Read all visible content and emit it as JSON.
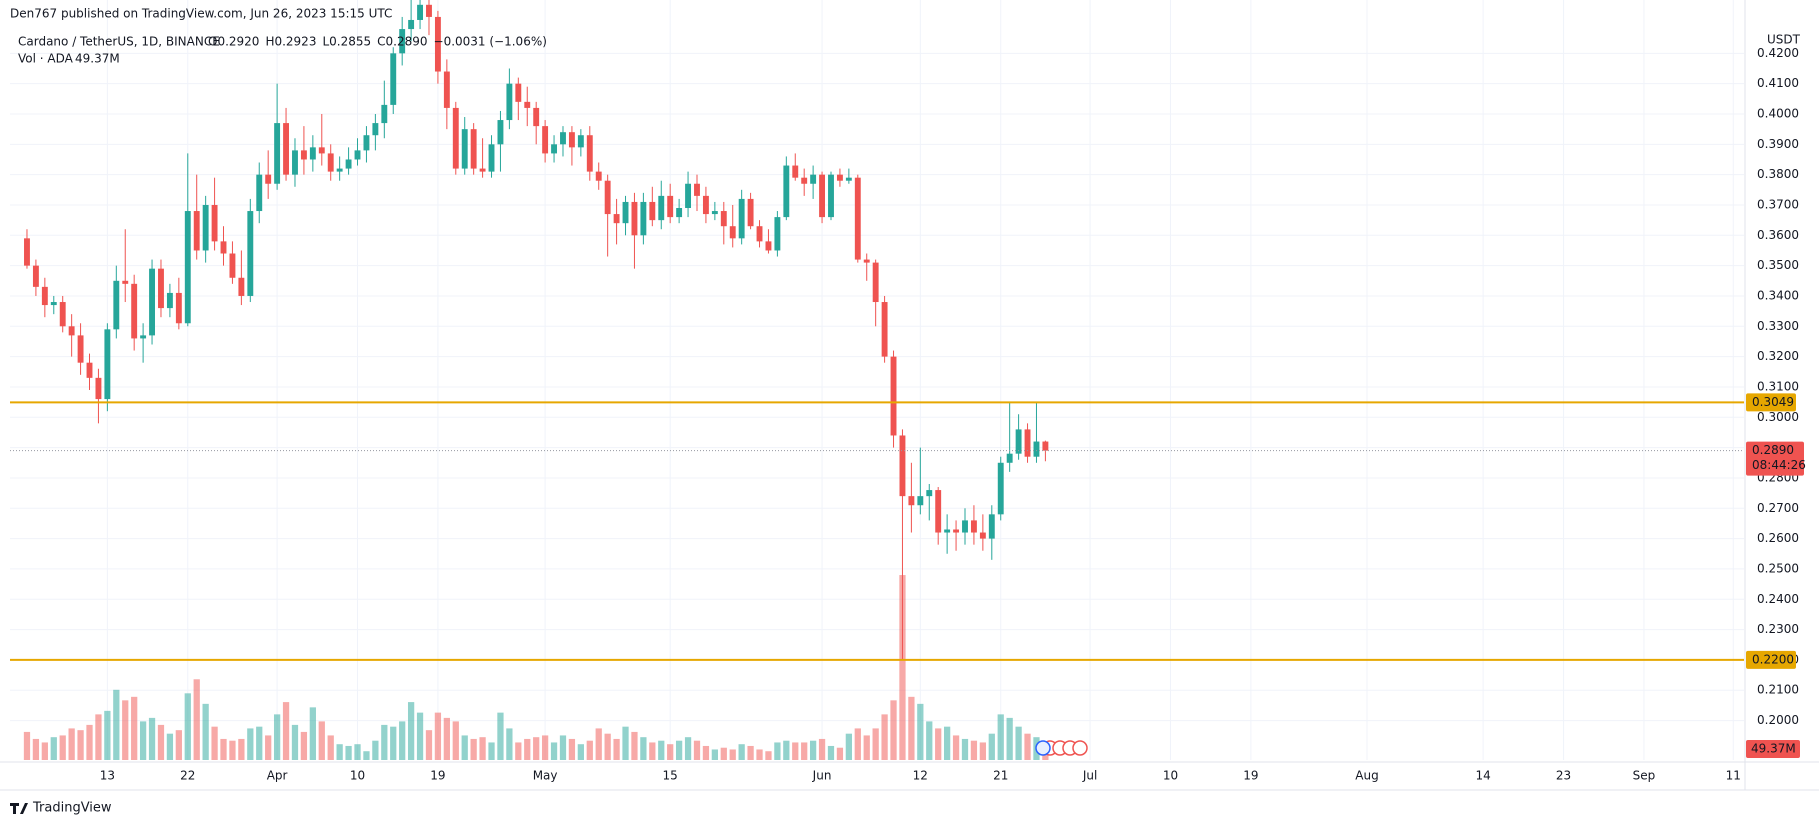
{
  "header": {
    "publisher": "Den767 published on TradingView.com, Jun 26, 2023 15:15 UTC",
    "footer": "TradingView"
  },
  "chart_data": {
    "type": "candlestick",
    "title": "Cardano / TetherUS, 1D, BINANCE",
    "ohlc_legend": [
      "O0.2920",
      "H0.2923",
      "L0.2855",
      "C0.2890",
      "−0.0031 (−1.06%)"
    ],
    "y_unit": "USDT",
    "up_color": "#26a69a",
    "down_color": "#ef5350",
    "grid": true,
    "xlim": [
      -1.9,
      192.2
    ],
    "xticks": [
      {
        "value": 9,
        "label": "13"
      },
      {
        "value": 18,
        "label": "22"
      },
      {
        "value": 28,
        "label": "Apr"
      },
      {
        "value": 37,
        "label": "10"
      },
      {
        "value": 46,
        "label": "19"
      },
      {
        "value": 58,
        "label": "May"
      },
      {
        "value": 72,
        "label": "15"
      },
      {
        "value": 89,
        "label": "Jun"
      },
      {
        "value": 100,
        "label": "12"
      },
      {
        "value": 109,
        "label": "21"
      },
      {
        "value": 119,
        "label": "Jul"
      },
      {
        "value": 128,
        "label": "10"
      },
      {
        "value": 137,
        "label": "19"
      },
      {
        "value": 150,
        "label": "Aug"
      },
      {
        "value": 163,
        "label": "14"
      },
      {
        "value": 172,
        "label": "23"
      },
      {
        "value": 181,
        "label": "Sep"
      },
      {
        "value": 191,
        "label": "11"
      }
    ],
    "ylim": [
      0.187,
      0.43
    ],
    "yticks": [
      {
        "value": 0.2,
        "label": "0.2000"
      },
      {
        "value": 0.21,
        "label": "0.2100"
      },
      {
        "value": 0.22,
        "label": "0.2200"
      },
      {
        "value": 0.23,
        "label": "0.2300"
      },
      {
        "value": 0.24,
        "label": "0.2400"
      },
      {
        "value": 0.25,
        "label": "0.2500"
      },
      {
        "value": 0.26,
        "label": "0.2600"
      },
      {
        "value": 0.27,
        "label": "0.2700"
      },
      {
        "value": 0.28,
        "label": "0.2800"
      },
      {
        "value": 0.29,
        "label": "0.2900"
      },
      {
        "value": 0.3,
        "label": "0.3000"
      },
      {
        "value": 0.31,
        "label": "0.3100"
      },
      {
        "value": 0.32,
        "label": "0.3200"
      },
      {
        "value": 0.33,
        "label": "0.3300"
      },
      {
        "value": 0.34,
        "label": "0.3400"
      },
      {
        "value": 0.35,
        "label": "0.3500"
      },
      {
        "value": 0.36,
        "label": "0.3600"
      },
      {
        "value": 0.37,
        "label": "0.3700"
      },
      {
        "value": 0.38,
        "label": "0.3800"
      },
      {
        "value": 0.39,
        "label": "0.3900"
      },
      {
        "value": 0.4,
        "label": "0.4000"
      },
      {
        "value": 0.41,
        "label": "0.4100"
      },
      {
        "value": 0.42,
        "label": "0.4200"
      }
    ],
    "open": [
      0.359,
      0.35,
      0.343,
      0.337,
      0.338,
      0.33,
      0.327,
      0.318,
      0.313,
      0.306,
      0.329,
      0.345,
      0.344,
      0.326,
      0.327,
      0.349,
      0.336,
      0.341,
      0.331,
      0.368,
      0.355,
      0.37,
      0.358,
      0.354,
      0.346,
      0.34,
      0.368,
      0.38,
      0.377,
      0.397,
      0.38,
      0.388,
      0.385,
      0.389,
      0.387,
      0.381,
      0.382,
      0.385,
      0.388,
      0.393,
      0.397,
      0.403,
      0.42,
      0.428,
      0.431,
      0.436,
      0.432,
      0.414,
      0.402,
      0.382,
      0.395,
      0.382,
      0.381,
      0.39,
      0.398,
      0.41,
      0.404,
      0.402,
      0.396,
      0.387,
      0.39,
      0.394,
      0.389,
      0.393,
      0.381,
      0.378,
      0.367,
      0.364,
      0.371,
      0.36,
      0.371,
      0.365,
      0.373,
      0.366,
      0.369,
      0.377,
      0.373,
      0.367,
      0.368,
      0.363,
      0.359,
      0.372,
      0.363,
      0.358,
      0.355,
      0.366,
      0.383,
      0.379,
      0.377,
      0.38,
      0.366,
      0.38,
      0.378,
      0.379,
      0.352,
      0.351,
      0.338,
      0.32,
      0.294,
      0.274,
      0.271,
      0.274,
      0.276,
      0.262,
      0.263,
      0.262,
      0.266,
      0.262,
      0.26,
      0.268,
      0.285,
      0.288,
      0.296,
      0.287,
      0.292
    ],
    "high": [
      0.362,
      0.352,
      0.346,
      0.34,
      0.34,
      0.334,
      0.331,
      0.321,
      0.316,
      0.331,
      0.35,
      0.362,
      0.347,
      0.331,
      0.352,
      0.352,
      0.344,
      0.346,
      0.387,
      0.38,
      0.373,
      0.379,
      0.363,
      0.358,
      0.355,
      0.372,
      0.384,
      0.388,
      0.41,
      0.402,
      0.392,
      0.396,
      0.393,
      0.4,
      0.39,
      0.386,
      0.389,
      0.392,
      0.396,
      0.4,
      0.411,
      0.422,
      0.432,
      0.44,
      0.445,
      0.44,
      0.434,
      0.418,
      0.404,
      0.399,
      0.397,
      0.392,
      0.393,
      0.401,
      0.415,
      0.412,
      0.409,
      0.404,
      0.398,
      0.393,
      0.396,
      0.396,
      0.395,
      0.396,
      0.384,
      0.38,
      0.372,
      0.373,
      0.374,
      0.374,
      0.376,
      0.378,
      0.377,
      0.372,
      0.381,
      0.38,
      0.376,
      0.371,
      0.371,
      0.37,
      0.375,
      0.374,
      0.365,
      0.362,
      0.368,
      0.386,
      0.387,
      0.382,
      0.383,
      0.381,
      0.381,
      0.382,
      0.382,
      0.38,
      0.354,
      0.352,
      0.34,
      0.322,
      0.296,
      0.285,
      0.29,
      0.278,
      0.277,
      0.268,
      0.266,
      0.27,
      0.271,
      0.268,
      0.271,
      0.287,
      0.305,
      0.301,
      0.298,
      0.305,
      0.2923
    ],
    "low": [
      0.349,
      0.34,
      0.333,
      0.334,
      0.328,
      0.32,
      0.314,
      0.309,
      0.298,
      0.302,
      0.326,
      0.338,
      0.322,
      0.318,
      0.324,
      0.333,
      0.333,
      0.329,
      0.33,
      0.352,
      0.351,
      0.355,
      0.35,
      0.344,
      0.337,
      0.338,
      0.364,
      0.372,
      0.375,
      0.378,
      0.376,
      0.38,
      0.381,
      0.383,
      0.378,
      0.378,
      0.38,
      0.383,
      0.384,
      0.388,
      0.392,
      0.4,
      0.416,
      0.424,
      0.428,
      0.426,
      0.41,
      0.395,
      0.38,
      0.38,
      0.38,
      0.379,
      0.379,
      0.381,
      0.395,
      0.398,
      0.396,
      0.39,
      0.384,
      0.384,
      0.386,
      0.383,
      0.386,
      0.378,
      0.375,
      0.353,
      0.357,
      0.36,
      0.349,
      0.357,
      0.363,
      0.362,
      0.364,
      0.364,
      0.366,
      0.368,
      0.364,
      0.365,
      0.357,
      0.356,
      0.357,
      0.362,
      0.356,
      0.354,
      0.353,
      0.365,
      0.378,
      0.373,
      0.372,
      0.364,
      0.365,
      0.376,
      0.377,
      0.351,
      0.345,
      0.33,
      0.318,
      0.29,
      0.22,
      0.262,
      0.268,
      0.266,
      0.258,
      0.255,
      0.256,
      0.258,
      0.258,
      0.256,
      0.253,
      0.266,
      0.282,
      0.286,
      0.285,
      0.285,
      0.2855
    ],
    "close": [
      0.35,
      0.343,
      0.337,
      0.338,
      0.33,
      0.327,
      0.318,
      0.313,
      0.306,
      0.329,
      0.345,
      0.344,
      0.326,
      0.327,
      0.349,
      0.336,
      0.341,
      0.331,
      0.368,
      0.355,
      0.37,
      0.358,
      0.354,
      0.346,
      0.34,
      0.368,
      0.38,
      0.377,
      0.397,
      0.38,
      0.388,
      0.385,
      0.389,
      0.387,
      0.381,
      0.382,
      0.385,
      0.388,
      0.393,
      0.397,
      0.403,
      0.42,
      0.428,
      0.431,
      0.436,
      0.432,
      0.414,
      0.402,
      0.382,
      0.395,
      0.382,
      0.381,
      0.39,
      0.398,
      0.41,
      0.404,
      0.402,
      0.396,
      0.387,
      0.39,
      0.394,
      0.389,
      0.393,
      0.381,
      0.378,
      0.367,
      0.364,
      0.371,
      0.36,
      0.371,
      0.365,
      0.373,
      0.366,
      0.369,
      0.377,
      0.373,
      0.367,
      0.368,
      0.363,
      0.359,
      0.372,
      0.363,
      0.358,
      0.355,
      0.366,
      0.383,
      0.379,
      0.377,
      0.38,
      0.366,
      0.38,
      0.378,
      0.379,
      0.352,
      0.351,
      0.338,
      0.32,
      0.294,
      0.274,
      0.271,
      0.274,
      0.276,
      0.262,
      0.263,
      0.262,
      0.266,
      0.262,
      0.26,
      0.268,
      0.285,
      0.288,
      0.296,
      0.287,
      0.292,
      0.289
    ],
    "volume": {
      "name": "Vol · ADA",
      "ylim": [
        0,
        2100
      ],
      "last": {
        "value": 49.37,
        "label": "49.37M"
      },
      "values": [
        80,
        60,
        50,
        65,
        70,
        90,
        85,
        100,
        130,
        140,
        200,
        170,
        180,
        110,
        120,
        100,
        75,
        85,
        190,
        230,
        160,
        95,
        60,
        55,
        60,
        90,
        95,
        70,
        130,
        165,
        100,
        80,
        150,
        110,
        70,
        45,
        40,
        45,
        25,
        55,
        100,
        95,
        110,
        165,
        135,
        85,
        135,
        120,
        110,
        70,
        60,
        65,
        50,
        135,
        90,
        50,
        60,
        65,
        70,
        50,
        70,
        60,
        45,
        55,
        90,
        75,
        60,
        95,
        80,
        65,
        50,
        55,
        45,
        55,
        65,
        55,
        40,
        30,
        35,
        30,
        45,
        40,
        30,
        25,
        50,
        55,
        50,
        50,
        55,
        60,
        40,
        35,
        75,
        90,
        70,
        90,
        130,
        170,
        527,
        180,
        160,
        110,
        90,
        95,
        70,
        60,
        55,
        50,
        75,
        130,
        120,
        95,
        75,
        65,
        49.37
      ]
    },
    "levels": [
      {
        "value": 0.3049,
        "label": "0.3049",
        "color": "#e6a700"
      },
      {
        "value": 0.22,
        "label": "0.2200",
        "color": "#e6a700"
      }
    ],
    "last_price": {
      "value": 0.289,
      "label": "0.2890",
      "countdown": "08:44:26",
      "color": "#ef5350"
    }
  }
}
